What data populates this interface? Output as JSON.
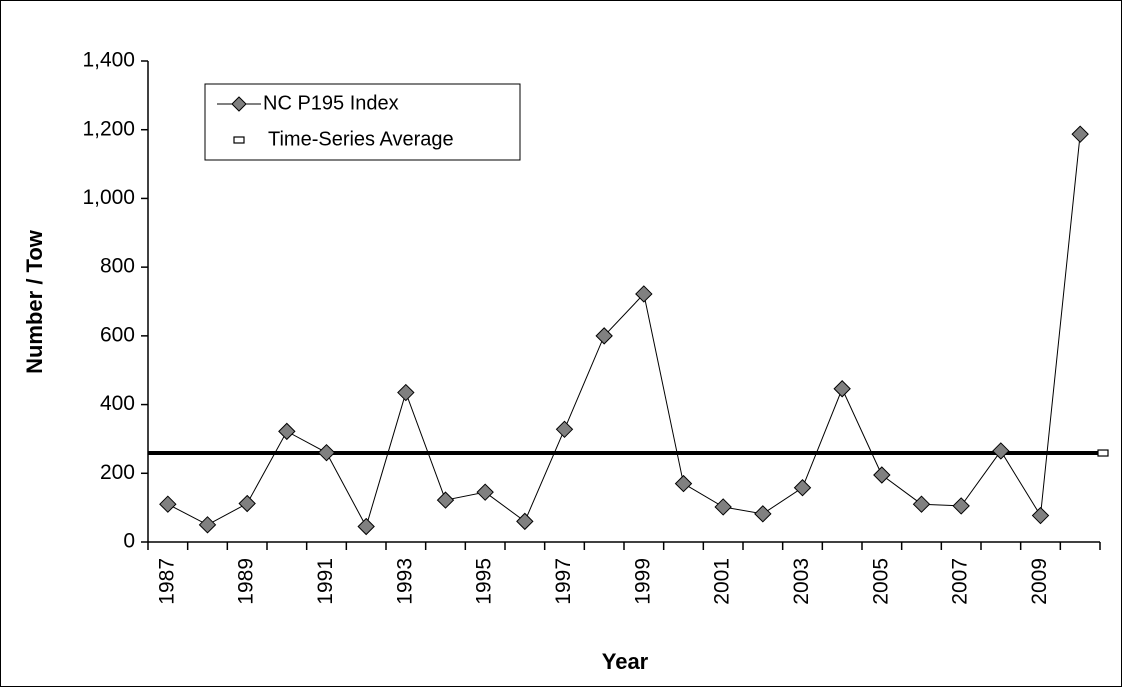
{
  "chart_data": {
    "type": "line",
    "x_label": "Year",
    "y_label": "Number / Tow",
    "categories": [
      "1987",
      null,
      "1989",
      null,
      "1991",
      null,
      "1993",
      null,
      "1995",
      null,
      "1997",
      null,
      "1999",
      null,
      "2001",
      null,
      "2003",
      null,
      "2005",
      null,
      "2007",
      null,
      "2009",
      null
    ],
    "series": [
      {
        "name": "NC P195 Index",
        "color": "#808080",
        "values": [
          110,
          50,
          112,
          322,
          260,
          45,
          435,
          122,
          145,
          60,
          328,
          600,
          722,
          170,
          102,
          82,
          158,
          446,
          195,
          110,
          105,
          265,
          77,
          1187
        ]
      }
    ],
    "average": {
      "name": "Time-Series Average",
      "color": "#000000",
      "value": 259
    },
    "ylim": [
      0,
      1400
    ],
    "yticks": [
      0,
      200,
      400,
      600,
      800,
      {
        "value": 1000,
        "label": "1,000"
      },
      {
        "value": 1200,
        "label": "1,200"
      },
      {
        "value": 1400,
        "label": "1,400"
      }
    ],
    "grid": false,
    "legend": "top-left"
  }
}
